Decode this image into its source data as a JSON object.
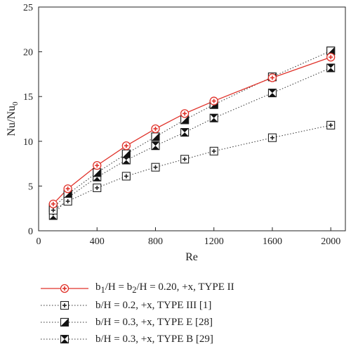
{
  "chart_data": {
    "type": "line",
    "xlabel": "Re",
    "ylabel": "Nu/Nu0",
    "xlim": [
      0,
      2100
    ],
    "ylim": [
      0,
      25
    ],
    "xticks": [
      0,
      400,
      800,
      1200,
      1600,
      2000
    ],
    "xtick_labels": [
      "0",
      "400",
      "800",
      "1200",
      "1600",
      "2000"
    ],
    "yticks": [
      0,
      5,
      10,
      15,
      20,
      25
    ],
    "ytick_labels": [
      "0",
      "5",
      "10",
      "15",
      "20",
      "25"
    ],
    "grid": false,
    "legend_position": "below",
    "series": [
      {
        "name": "b1/H = b2/H = 0.20, +x, TYPE II",
        "line": "solid",
        "color": "#e0322a",
        "marker": "circle-plus",
        "x": [
          100,
          200,
          400,
          600,
          800,
          1000,
          1200,
          1600,
          2000
        ],
        "y": [
          3.0,
          4.7,
          7.3,
          9.5,
          11.4,
          13.1,
          14.5,
          17.1,
          19.4
        ]
      },
      {
        "name": "b/H = 0.2, +x, TYPE III [1]",
        "line": "dotted",
        "color": "#333333",
        "marker": "square-plus",
        "x": [
          100,
          200,
          400,
          600,
          800,
          1000,
          1200,
          1600,
          2000
        ],
        "y": [
          2.3,
          3.3,
          4.8,
          6.1,
          7.1,
          8.0,
          8.9,
          10.4,
          11.8
        ]
      },
      {
        "name": "b/H = 0.3, +x, TYPE E [28]",
        "line": "dotted",
        "color": "#333333",
        "marker": "square-half",
        "x": [
          100,
          200,
          400,
          600,
          800,
          1000,
          1200,
          1600,
          2000
        ],
        "y": [
          2.6,
          4.1,
          6.5,
          8.6,
          10.5,
          12.4,
          14.1,
          17.2,
          20.1
        ]
      },
      {
        "name": "b/H = 0.3, +x, TYPE B [29]",
        "line": "dotted",
        "color": "#333333",
        "marker": "square-bowtie",
        "x": [
          100,
          200,
          400,
          600,
          800,
          1000,
          1200,
          1600,
          2000
        ],
        "y": [
          1.7,
          3.7,
          6.0,
          7.9,
          9.5,
          11.0,
          12.6,
          15.4,
          18.2
        ]
      }
    ]
  },
  "legend": {
    "entries": [
      {
        "prefix": "b",
        "sub1": "1",
        "mid": "/H = b",
        "sub2": "2",
        "suffix": "/H = 0.20, +x, TYPE II"
      },
      {
        "prefix": "b/H = 0.2, +x, TYPE III [1]",
        "sub1": "",
        "mid": "",
        "sub2": "",
        "suffix": ""
      },
      {
        "prefix": "b/H = 0.3, +x, TYPE E [28]",
        "sub1": "",
        "mid": "",
        "sub2": "",
        "suffix": ""
      },
      {
        "prefix": "b/H = 0.3, +x, TYPE B [29]",
        "sub1": "",
        "mid": "",
        "sub2": "",
        "suffix": ""
      }
    ]
  },
  "ylabel_parts": {
    "main": "Nu/Nu",
    "sub": "0"
  }
}
